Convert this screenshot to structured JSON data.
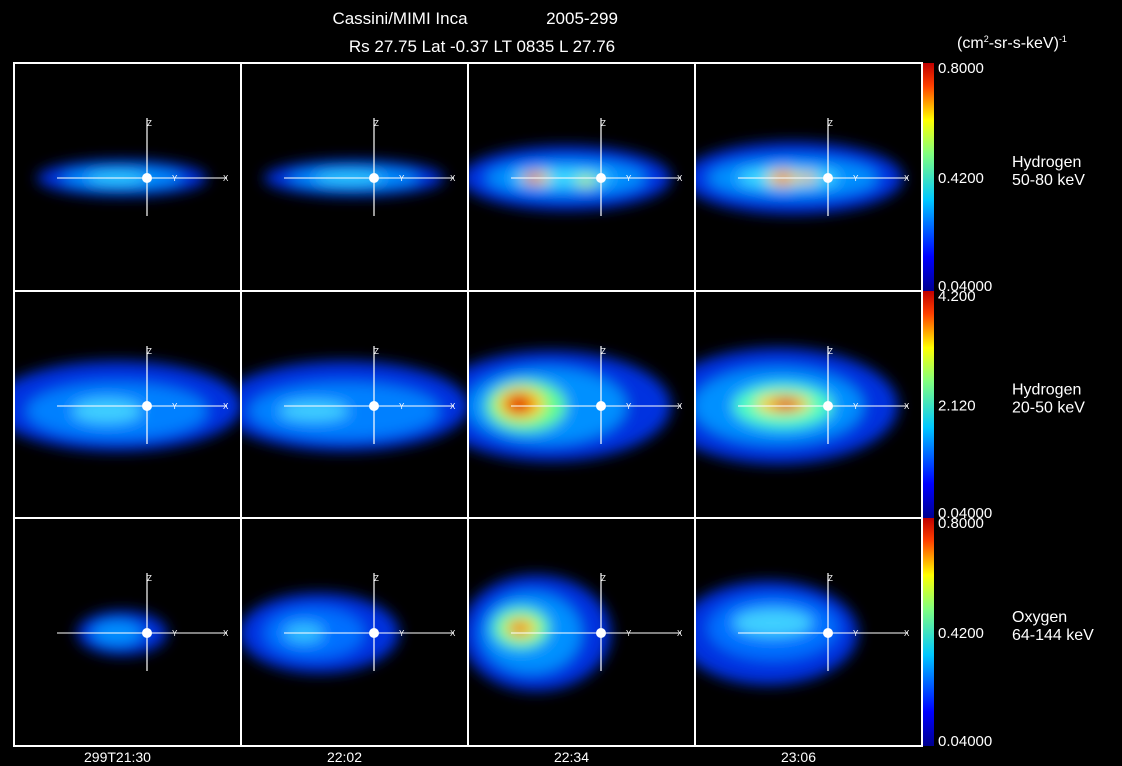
{
  "header": {
    "title": "Cassini/MIMI Inca",
    "date": "2005-299",
    "subtitle": "Rs 27.75 Lat -0.37 LT 0835 L 27.76",
    "unit": {
      "open": "(cm",
      "sup1": "2",
      "rest": "-sr-s-keV)",
      "sup2": "-1"
    }
  },
  "axis_labels": {
    "z": "Z",
    "y": "Y",
    "x": "X"
  },
  "rows": [
    {
      "species": "Hydrogen",
      "energy": "50-80 keV",
      "colorbar_ticks": [
        "0.8000",
        "0.4200",
        "0.04000"
      ]
    },
    {
      "species": "Hydrogen",
      "energy": "20-50 keV",
      "colorbar_ticks": [
        "4.200",
        "2.120",
        "0.04000"
      ]
    },
    {
      "species": "Oxygen",
      "energy": "64-144 keV",
      "colorbar_ticks": [
        "0.8000",
        "0.4200",
        "0.04000"
      ]
    }
  ],
  "columns": [
    "299T21:30",
    "22:02",
    "22:34",
    "23:06"
  ]
}
